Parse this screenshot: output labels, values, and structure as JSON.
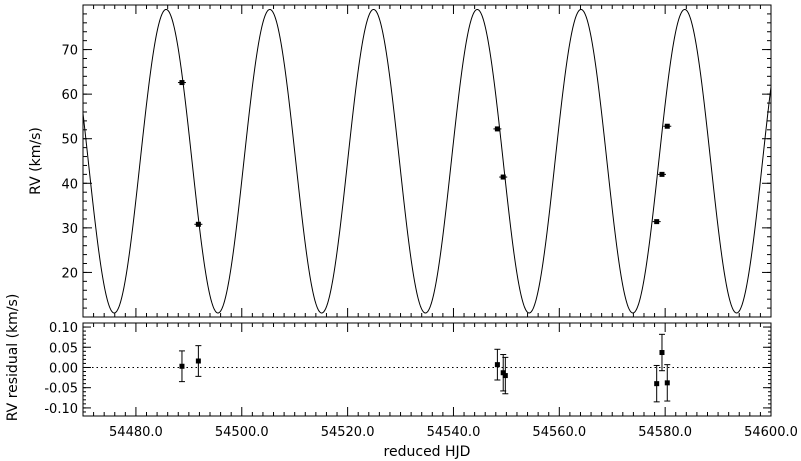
{
  "chart_data": [
    {
      "type": "line",
      "xlabel": "",
      "ylabel": "RV (km/s)",
      "xlim": [
        54470.0,
        54600.0
      ],
      "ylim": [
        10.0,
        80.0
      ],
      "yticks": [
        20,
        30,
        40,
        50,
        60,
        70
      ],
      "yticklabels": [
        "20",
        "30",
        "40",
        "50",
        "60",
        "70"
      ],
      "grid": false,
      "model": {
        "period": 19.6,
        "systemic_velocity": 44.95,
        "semi_amplitude": 34.05,
        "max_time": 54485.7
      },
      "series": [
        {
          "type": "scatter",
          "x": [
            54488.7,
            54491.8,
            54548.3,
            54549.4,
            54578.4,
            54579.4,
            54580.4
          ],
          "y": [
            62.6,
            30.8,
            52.2,
            41.4,
            31.4,
            42.0,
            52.8
          ]
        }
      ]
    },
    {
      "type": "scatter",
      "xlabel": "reduced HJD",
      "ylabel": "RV residual (km/s)",
      "xlim": [
        54470.0,
        54600.0
      ],
      "ylim": [
        -0.12,
        0.11
      ],
      "xticks": [
        54480,
        54500,
        54520,
        54540,
        54560,
        54580,
        54600
      ],
      "xticklabels": [
        "54480.0",
        "54500.0",
        "54520.0",
        "54540.0",
        "54560.0",
        "54580.0",
        "54600.0"
      ],
      "yticks": [
        -0.1,
        -0.05,
        0.0,
        0.05,
        0.1
      ],
      "yticklabels": [
        "-0.10",
        "-0.05",
        "0.00",
        "0.05",
        "0.10"
      ],
      "reference_line": 0.0,
      "grid": false,
      "series": [
        {
          "x": [
            54488.7,
            54491.8,
            54548.3,
            54549.4,
            54549.8,
            54578.4,
            54579.4,
            54580.4
          ],
          "y": [
            0.003,
            0.016,
            0.007,
            -0.013,
            -0.02,
            -0.04,
            0.037,
            -0.038
          ],
          "error": [
            0.038,
            0.038,
            0.038,
            0.045,
            0.045,
            0.045,
            0.045,
            0.045
          ]
        }
      ]
    }
  ]
}
